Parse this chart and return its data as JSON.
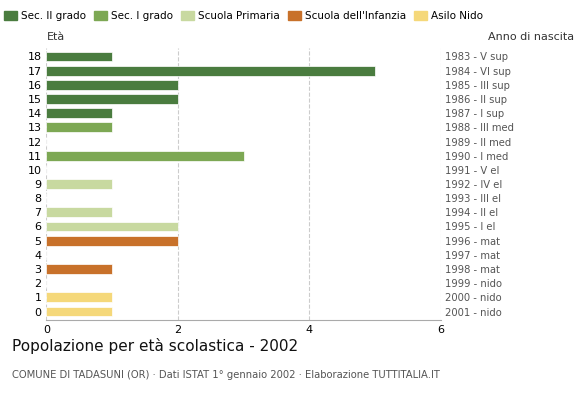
{
  "ages": [
    18,
    17,
    16,
    15,
    14,
    13,
    12,
    11,
    10,
    9,
    8,
    7,
    6,
    5,
    4,
    3,
    2,
    1,
    0
  ],
  "values": [
    1,
    5,
    2,
    2,
    1,
    1,
    0,
    3,
    0,
    1,
    0,
    1,
    2,
    2,
    0,
    1,
    0,
    1,
    1
  ],
  "colors": [
    "#4a7c3f",
    "#4a7c3f",
    "#4a7c3f",
    "#4a7c3f",
    "#4a7c3f",
    "#7da854",
    "#7da854",
    "#7da854",
    "#7da854",
    "#c8d9a0",
    "#c8d9a0",
    "#c8d9a0",
    "#c8d9a0",
    "#c8712a",
    "#c8712a",
    "#c8712a",
    "#f5d87a",
    "#f5d87a",
    "#f5d87a"
  ],
  "right_labels": [
    "1983 - V sup",
    "1984 - VI sup",
    "1985 - III sup",
    "1986 - II sup",
    "1987 - I sup",
    "1988 - III med",
    "1989 - II med",
    "1990 - I med",
    "1991 - V el",
    "1992 - IV el",
    "1993 - III el",
    "1994 - II el",
    "1995 - I el",
    "1996 - mat",
    "1997 - mat",
    "1998 - mat",
    "1999 - nido",
    "2000 - nido",
    "2001 - nido"
  ],
  "legend_labels": [
    "Sec. II grado",
    "Sec. I grado",
    "Scuola Primaria",
    "Scuola dell'Infanzia",
    "Asilo Nido"
  ],
  "legend_colors": [
    "#4a7c3f",
    "#7da854",
    "#c8d9a0",
    "#c8712a",
    "#f5d87a"
  ],
  "title": "Popolazione per età scolastica - 2002",
  "subtitle": "COMUNE DI TADASUNI (OR) · Dati ISTAT 1° gennaio 2002 · Elaborazione TUTTITALIA.IT",
  "xlim": [
    0,
    6
  ],
  "xticks": [
    0,
    2,
    4,
    6
  ],
  "age_label": "Età",
  "year_label": "Anno di nascita",
  "background_color": "#ffffff",
  "bar_height": 0.7
}
